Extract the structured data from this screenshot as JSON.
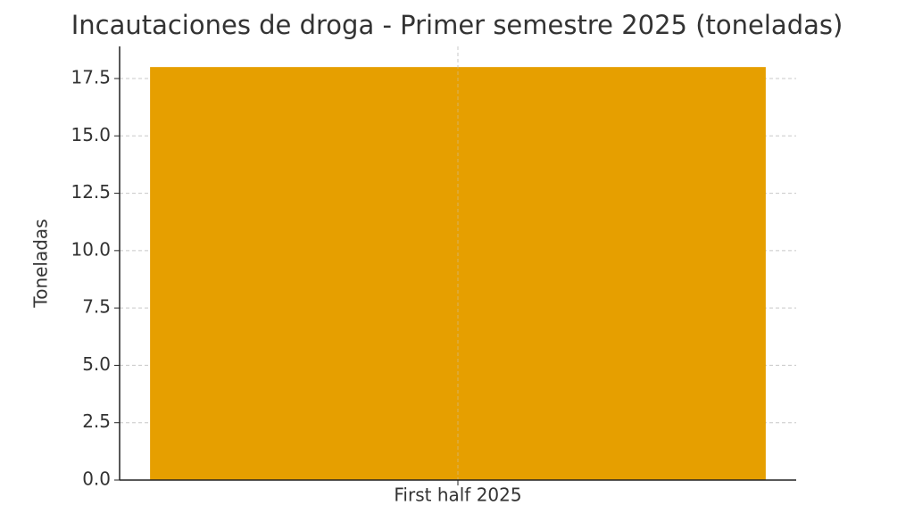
{
  "chart_data": {
    "type": "bar",
    "title": "Incautaciones de droga - Primer semestre 2025 (toneladas)",
    "y_label": "Toneladas",
    "categories": [
      "First half 2025"
    ],
    "values": [
      18
    ],
    "color": "#e69f00",
    "ylim": [
      0,
      18.9
    ],
    "yticks": [
      {
        "value": 0,
        "label": "0.0"
      },
      2.5,
      {
        "value": 5,
        "label": "5.0"
      },
      7.5,
      {
        "value": 10,
        "label": "10.0"
      },
      12.5,
      {
        "value": 15,
        "label": "15.0"
      },
      17.5
    ],
    "grid": true
  }
}
